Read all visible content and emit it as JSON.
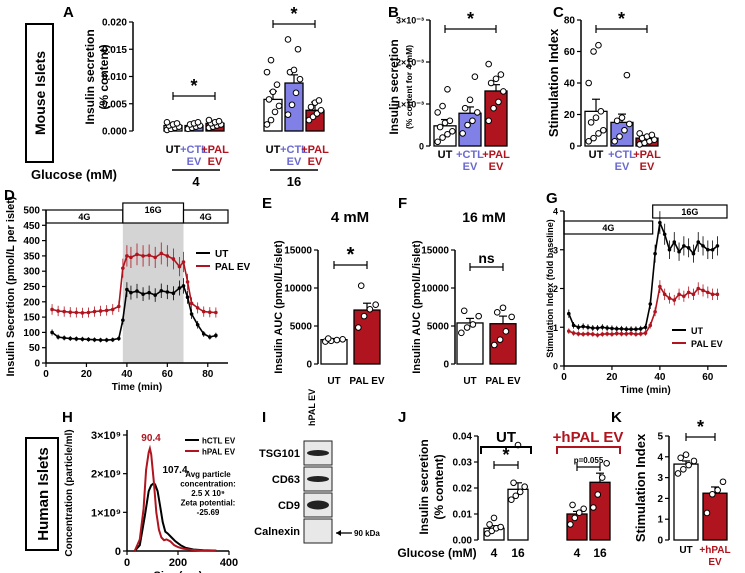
{
  "sidebar_labels": {
    "mouse": "Mouse Islets",
    "human": "Human Islets"
  },
  "colors": {
    "ut": "#ffffff",
    "ctl": "#8080e6",
    "pal": "#b0141e",
    "ctl_text": "#6a6ad0",
    "pal_text": "#b0141e",
    "shade": "#d4d4d4"
  },
  "common": {
    "ut": "UT",
    "pal_ev": "PAL EV",
    "ctl_ev_plus": "+CTL",
    "pal_ev_plus": "+PAL",
    "ev": "EV",
    "hpal_ev_plus": "+hPAL",
    "star": "*",
    "ns": "ns",
    "time_axis": "Time (min)",
    "glucose_4g": "4G",
    "glucose_16g": "16G",
    "marker_90": "90 kDa"
  },
  "chart_data": [
    {
      "id": "A",
      "type": "bar",
      "title": "",
      "ylabel": "Insulin secretion (% content)",
      "ylabel_line1": "Insulin secretion",
      "ylabel_line2": "(% content)",
      "ylim": [
        0,
        0.02
      ],
      "yticks": [
        "0.000",
        "0.005",
        "0.010",
        "0.015",
        "0.020"
      ],
      "xlabel": "Glucose (mM)",
      "group_labels": [
        "4",
        "16"
      ],
      "series": [
        {
          "name": "UT",
          "values": [
            0.001,
            0.0058
          ],
          "points": [
            [
              0.0002,
              0.0004,
              0.0006,
              0.0008,
              0.001,
              0.0012,
              0.0014,
              0.0016
            ],
            [
              0.0012,
              0.002,
              0.0035,
              0.0046,
              0.0058,
              0.0072,
              0.0085,
              0.0108,
              0.013
            ]
          ]
        },
        {
          "name": "+CTL EV",
          "values": [
            0.001,
            0.0088
          ],
          "points": [
            [
              0.0004,
              0.0006,
              0.0008,
              0.001,
              0.0012,
              0.0014,
              0.0016
            ],
            [
              0.003,
              0.0048,
              0.007,
              0.0095,
              0.0108,
              0.0112,
              0.015,
              0.0168
            ]
          ]
        },
        {
          "name": "+PAL EV",
          "values": [
            0.0014,
            0.0038
          ],
          "points": [
            [
              0.0006,
              0.0008,
              0.001,
              0.0012,
              0.0014,
              0.0016,
              0.0018,
              0.002
            ],
            [
              0.002,
              0.0026,
              0.0032,
              0.0038,
              0.0044,
              0.0052,
              0.0056
            ]
          ]
        }
      ],
      "annotations": [
        "*",
        "*"
      ]
    },
    {
      "id": "B",
      "type": "bar",
      "ylabel_line1": "Insulin secretion",
      "ylabel_line2": "(% content for 4 mM)",
      "ylim": [
        0,
        0.003
      ],
      "yticks": [
        "0",
        "1×10⁻³",
        "2×10⁻³",
        "3×10⁻³"
      ],
      "categories": [
        "UT",
        "+CTL EV",
        "+PAL EV"
      ],
      "values": [
        0.00048,
        0.00078,
        0.00131
      ],
      "points": [
        [
          0.0001,
          0.0002,
          0.00028,
          0.00035,
          0.00045,
          0.00055,
          0.0006,
          0.0008,
          0.00095,
          0.00135
        ],
        [
          0.0003,
          0.0005,
          0.0006,
          0.0008,
          0.0009,
          0.0011,
          0.00165
        ],
        [
          0.0006,
          0.0009,
          0.00105,
          0.0013,
          0.0015,
          0.0016,
          0.0017,
          0.00195
        ]
      ],
      "annotations": [
        "*"
      ]
    },
    {
      "id": "C",
      "type": "bar",
      "ylabel": "Stimulation Index",
      "ylim": [
        0,
        80
      ],
      "yticks": [
        "0",
        "20",
        "40",
        "60",
        "80"
      ],
      "categories": [
        "UT",
        "+CTL EV",
        "+PAL EV"
      ],
      "values": [
        22,
        15,
        5
      ],
      "points": [
        [
          3,
          5,
          8,
          10,
          15,
          18,
          22,
          40,
          60,
          64
        ],
        [
          3,
          6,
          10,
          14,
          16,
          18,
          45
        ],
        [
          1,
          2,
          3,
          4,
          5,
          6,
          7,
          8
        ]
      ],
      "annotations": [
        "*"
      ]
    },
    {
      "id": "D",
      "type": "line",
      "ylabel": "Insulin Secretion (pmol/L per islet)",
      "xlabel": "Time (min)",
      "xlim": [
        0,
        90
      ],
      "ylim": [
        0,
        500
      ],
      "xticks": [
        "0",
        "20",
        "40",
        "60",
        "80"
      ],
      "yticks": [
        "0",
        "50",
        "100",
        "150",
        "200",
        "250",
        "300",
        "350",
        "400",
        "450",
        "500"
      ],
      "phases": [
        "4G",
        "16G",
        "4G"
      ],
      "phase_bounds": [
        0,
        38,
        68,
        90
      ],
      "legend": [
        "UT",
        "PAL EV"
      ],
      "series": [
        {
          "name": "UT",
          "x": [
            3,
            6,
            9,
            12,
            15,
            18,
            21,
            24,
            27,
            30,
            33,
            36,
            38,
            40,
            42,
            45,
            48,
            51,
            54,
            57,
            60,
            63,
            66,
            68,
            70,
            72,
            75,
            78,
            81,
            84
          ],
          "y": [
            100,
            85,
            82,
            80,
            79,
            78,
            77,
            76,
            75,
            75,
            76,
            80,
            140,
            240,
            230,
            235,
            225,
            230,
            222,
            236,
            232,
            228,
            245,
            252,
            215,
            160,
            125,
            95,
            85,
            90
          ]
        },
        {
          "name": "PAL EV",
          "x": [
            3,
            6,
            9,
            12,
            15,
            18,
            21,
            24,
            27,
            30,
            33,
            36,
            38,
            40,
            42,
            45,
            48,
            51,
            54,
            57,
            60,
            63,
            66,
            68,
            70,
            72,
            75,
            78,
            81,
            84
          ],
          "y": [
            175,
            170,
            168,
            166,
            165,
            164,
            165,
            168,
            170,
            172,
            175,
            185,
            310,
            350,
            345,
            355,
            350,
            352,
            345,
            358,
            350,
            340,
            315,
            330,
            265,
            195,
            180,
            168,
            166,
            165
          ]
        }
      ]
    },
    {
      "id": "E",
      "type": "bar",
      "title": "4 mM",
      "ylabel": "Insulin AUC (pmol/L/islet)",
      "ylim": [
        0,
        15000
      ],
      "yticks": [
        "0",
        "5000",
        "10000",
        "15000"
      ],
      "categories": [
        "UT",
        "PAL EV"
      ],
      "values": [
        3200,
        7100
      ],
      "points": [
        [
          2950,
          3050,
          3150,
          3250,
          3350
        ],
        [
          4800,
          6300,
          7200,
          7800,
          10300
        ]
      ],
      "annotations": [
        "*"
      ]
    },
    {
      "id": "F",
      "type": "bar",
      "title": "16 mM",
      "ylabel": "Insulin AUC (pmol/L/islet)",
      "ylim": [
        0,
        15000
      ],
      "yticks": [
        "0",
        "5000",
        "10000",
        "15000"
      ],
      "categories": [
        "UT",
        "PAL EV"
      ],
      "values": [
        5400,
        5300
      ],
      "points": [
        [
          4100,
          4800,
          5200,
          6300,
          7000
        ],
        [
          2500,
          3200,
          4300,
          6200,
          6800,
          7400
        ]
      ],
      "annotations": [
        "ns"
      ]
    },
    {
      "id": "G",
      "type": "line",
      "ylabel": "Stimulation Index (fold baseline)",
      "xlabel": "Time (min)",
      "xlim": [
        0,
        68
      ],
      "ylim": [
        0,
        4
      ],
      "xticks": [
        "0",
        "20",
        "40",
        "60"
      ],
      "yticks": [
        "0",
        "1",
        "2",
        "3",
        "4"
      ],
      "phases": [
        "4G",
        "16G"
      ],
      "phase_bounds": [
        0,
        37,
        68
      ],
      "legend": [
        "UT",
        "PAL EV"
      ],
      "series": [
        {
          "name": "UT",
          "x": [
            2,
            4,
            6,
            8,
            10,
            12,
            14,
            16,
            18,
            20,
            22,
            24,
            26,
            28,
            30,
            32,
            34,
            36,
            38,
            40,
            42,
            44,
            46,
            48,
            50,
            52,
            54,
            56,
            58,
            60,
            62,
            64
          ],
          "y": [
            1.35,
            1.05,
            1.0,
            1.02,
            1.0,
            0.98,
            0.98,
            1.0,
            0.98,
            0.97,
            0.96,
            0.96,
            0.95,
            0.95,
            0.95,
            0.96,
            1.0,
            1.6,
            2.9,
            3.7,
            3.4,
            3.0,
            3.2,
            2.95,
            3.1,
            3.05,
            2.9,
            3.2,
            3.1,
            3.0,
            3.0,
            3.1
          ]
        },
        {
          "name": "PAL EV",
          "x": [
            2,
            4,
            6,
            8,
            10,
            12,
            14,
            16,
            18,
            20,
            22,
            24,
            26,
            28,
            30,
            32,
            34,
            36,
            38,
            40,
            42,
            44,
            46,
            48,
            50,
            52,
            54,
            56,
            58,
            60,
            62,
            64
          ],
          "y": [
            0.9,
            0.85,
            0.83,
            0.82,
            0.83,
            0.82,
            0.8,
            0.82,
            0.83,
            0.82,
            0.84,
            0.83,
            0.83,
            0.84,
            0.82,
            0.83,
            0.85,
            1.05,
            1.4,
            2.05,
            1.85,
            1.75,
            1.7,
            1.85,
            1.8,
            1.9,
            1.85,
            2.0,
            1.95,
            1.9,
            1.85,
            1.85
          ]
        }
      ]
    },
    {
      "id": "H",
      "type": "line",
      "ylabel": "Concentration (particle/ml)",
      "xlabel": "Size (nm)",
      "xlim": [
        0,
        400
      ],
      "ylim": [
        0,
        3000000000.0
      ],
      "xticks": [
        "0",
        "200",
        "400"
      ],
      "yticks": [
        "0",
        "1×10⁹",
        "2×10⁹",
        "3×10⁹"
      ],
      "legend": [
        "hCTL EV",
        "hPAL EV"
      ],
      "peak_labels": [
        "90.4",
        "107.4"
      ],
      "info_text": [
        "Avg particle",
        "concentration:",
        "2.5 X 10⁹",
        "Zeta potential:",
        "-25.69"
      ],
      "series": [
        {
          "name": "hCTL EV",
          "x": [
            30,
            50,
            70,
            85,
            95,
            105,
            110,
            120,
            130,
            140,
            150,
            160,
            175,
            190,
            210,
            230,
            260,
            300,
            350
          ],
          "y": [
            0,
            150000000.0,
            900000000.0,
            1550000000.0,
            1700000000.0,
            1750000000.0,
            1720000000.0,
            1550000000.0,
            1150000000.0,
            750000000.0,
            500000000.0,
            450000000.0,
            350000000.0,
            250000000.0,
            150000000.0,
            80000000.0,
            40000000.0,
            20000000.0,
            10000000.0
          ]
        },
        {
          "name": "hPAL EV",
          "x": [
            30,
            50,
            65,
            75,
            85,
            90,
            95,
            105,
            115,
            125,
            135,
            145,
            155,
            170,
            185,
            200,
            220,
            250,
            300,
            350
          ],
          "y": [
            0,
            300000000.0,
            1100000000.0,
            2100000000.0,
            2550000000.0,
            2650000000.0,
            2500000000.0,
            1800000000.0,
            1000000000.0,
            550000000.0,
            350000000.0,
            280000000.0,
            300000000.0,
            250000000.0,
            150000000.0,
            100000000.0,
            60000000.0,
            30000000.0,
            10000000.0,
            5000000.0
          ]
        }
      ]
    },
    {
      "id": "I",
      "type": "table",
      "header": "hPAL EV",
      "rows": [
        "TSG101",
        "CD63",
        "CD9",
        "Calnexin"
      ],
      "marker": "90 kDa"
    },
    {
      "id": "J",
      "type": "bar",
      "ylabel_line1": "Insulin secretion",
      "ylabel_line2": "(% content)",
      "ylim": [
        0,
        0.04
      ],
      "yticks": [
        "0.00",
        "0.01",
        "0.02",
        "0.03",
        "0.04"
      ],
      "xlabel": "Glucose (mM)",
      "group_labels": [
        "UT",
        "+hPAL EV"
      ],
      "categories": [
        "4",
        "16",
        "4",
        "16"
      ],
      "values": [
        0.0045,
        0.0195,
        0.01,
        0.0222
      ],
      "points": [
        [
          0.0025,
          0.0035,
          0.0045,
          0.005,
          0.006,
          0.0085
        ],
        [
          0.0155,
          0.017,
          0.0185,
          0.0205,
          0.022,
          0.0365
        ],
        [
          0.006,
          0.0085,
          0.0105,
          0.012,
          0.0135
        ],
        [
          0.0125,
          0.0175,
          0.024,
          0.0295
        ]
      ],
      "annotations": [
        "*",
        "p=0.055"
      ]
    },
    {
      "id": "K",
      "type": "bar",
      "ylabel": "Stimulation Index",
      "ylim": [
        0,
        5
      ],
      "yticks": [
        "0",
        "1",
        "2",
        "3",
        "4",
        "5"
      ],
      "categories": [
        "UT",
        "+hPAL EV"
      ],
      "values": [
        3.65,
        2.25
      ],
      "points": [
        [
          3.2,
          3.4,
          3.6,
          3.8,
          3.95,
          4.1
        ],
        [
          1.3,
          2.2,
          2.4,
          2.8
        ]
      ],
      "annotations": [
        "*"
      ]
    }
  ]
}
